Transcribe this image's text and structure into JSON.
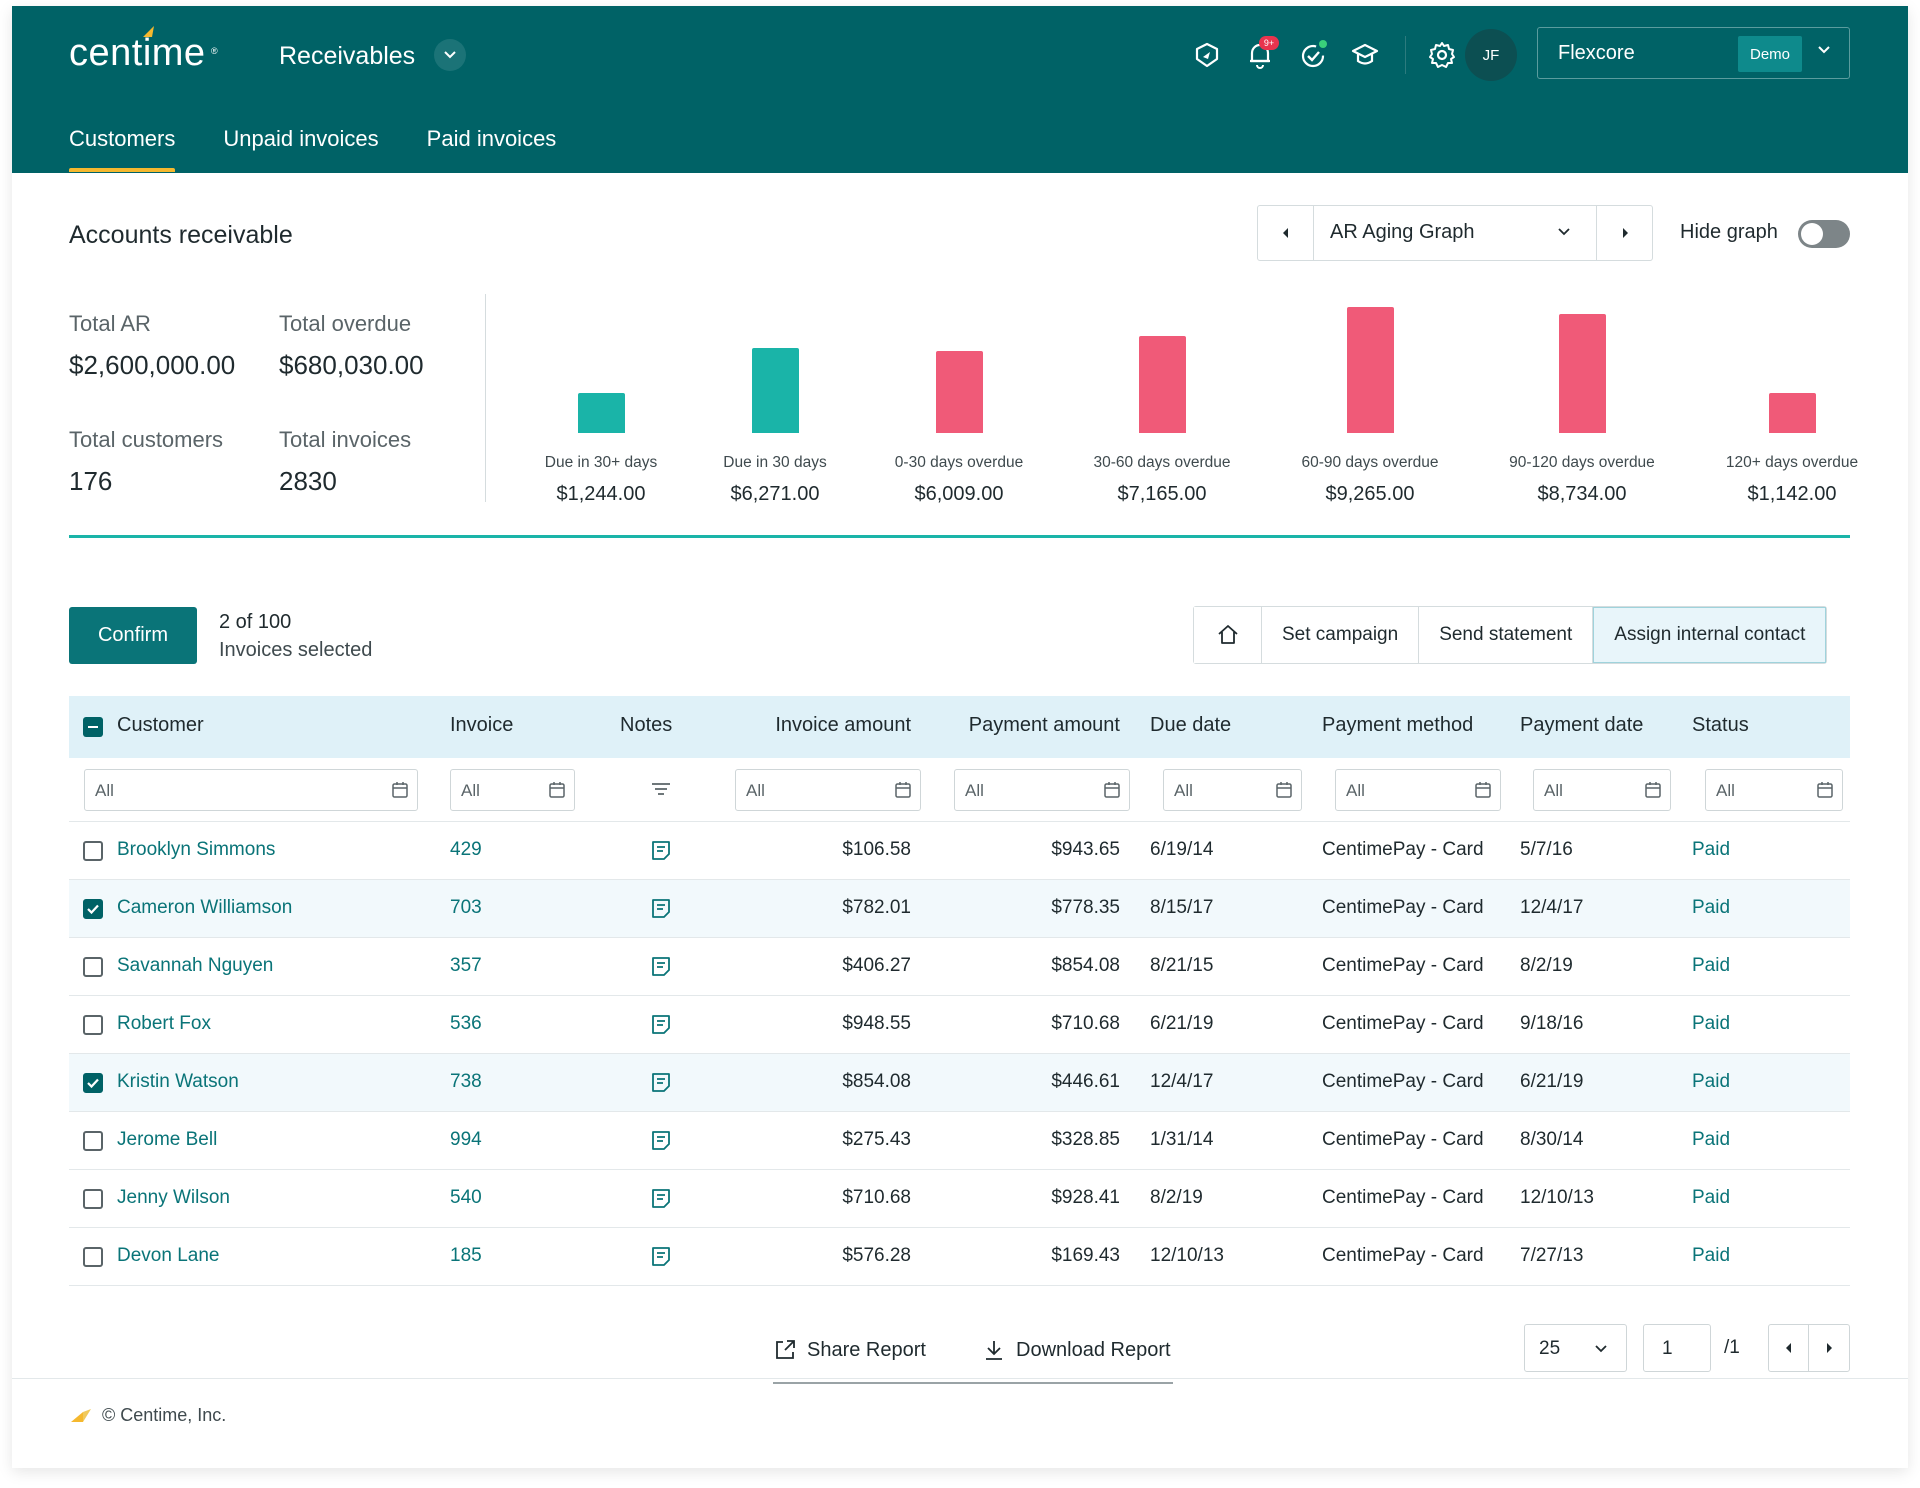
{
  "header": {
    "logo": "centime",
    "logo_reg": "®",
    "module": "Receivables",
    "avatar": "JF",
    "notif_badge": "9+",
    "company": "Flexcore",
    "company_badge": "Demo",
    "tabs": [
      {
        "label": "Customers"
      },
      {
        "label": "Unpaid invoices"
      },
      {
        "label": "Paid invoices"
      }
    ],
    "icons": [
      "shield-icon",
      "bell-icon",
      "check-badge-icon",
      "graduation-cap-icon",
      "gear-icon"
    ]
  },
  "ar": {
    "title": "Accounts receivable",
    "graph_select": "AR Aging Graph",
    "hide_graph": "Hide graph",
    "stats": [
      {
        "label": "Total AR",
        "value": "$2,600,000.00"
      },
      {
        "label": "Total overdue",
        "value": "$680,030.00"
      },
      {
        "label": "Total customers",
        "value": "176"
      },
      {
        "label": "Total invoices",
        "value": "2830"
      }
    ]
  },
  "chart_data": {
    "type": "bar",
    "categories": [
      "Due in 30+ days",
      "Due in 30 days",
      "0-30 days overdue",
      "30-60 days overdue",
      "60-90 days overdue",
      "90-120 days overdue",
      "120+ days overdue"
    ],
    "values": [
      1244.0,
      6271.0,
      6009.0,
      7165.0,
      9265.0,
      8734.0,
      1142.0
    ],
    "value_labels": [
      "$1,244.00",
      "$6,271.00",
      "$6,009.00",
      "$7,165.00",
      "$9,265.00",
      "$8,734.00",
      "$1,142.00"
    ],
    "colors": [
      "#1ab4a8",
      "#1ab4a8",
      "#f05a78",
      "#f05a78",
      "#f05a78",
      "#f05a78",
      "#f05a78"
    ],
    "title": "",
    "xlabel": "",
    "ylabel": ""
  },
  "actions": {
    "confirm": "Confirm",
    "selected_count": "2 of 100",
    "selected_text": "Invoices selected",
    "buttons": [
      "Set campaign",
      "Send statement",
      "Assign internal contact"
    ]
  },
  "table": {
    "columns": [
      "Customer",
      "Invoice",
      "Notes",
      "Invoice amount",
      "Payment amount",
      "Due date",
      "Payment method",
      "Payment date",
      "Status"
    ],
    "filter_placeholder": "All",
    "rows": [
      {
        "checked": false,
        "customer": "Brooklyn Simmons",
        "invoice": "429",
        "invoice_amount": "$106.58",
        "payment_amount": "$943.65",
        "due_date": "6/19/14",
        "payment_method": "CentimePay - Card",
        "payment_date": "5/7/16",
        "status": "Paid"
      },
      {
        "checked": true,
        "customer": "Cameron Williamson",
        "invoice": "703",
        "invoice_amount": "$782.01",
        "payment_amount": "$778.35",
        "due_date": "8/15/17",
        "payment_method": "CentimePay - Card",
        "payment_date": "12/4/17",
        "status": "Paid"
      },
      {
        "checked": false,
        "customer": "Savannah Nguyen",
        "invoice": "357",
        "invoice_amount": "$406.27",
        "payment_amount": "$854.08",
        "due_date": "8/21/15",
        "payment_method": "CentimePay - Card",
        "payment_date": "8/2/19",
        "status": "Paid"
      },
      {
        "checked": false,
        "customer": "Robert Fox",
        "invoice": "536",
        "invoice_amount": "$948.55",
        "payment_amount": "$710.68",
        "due_date": "6/21/19",
        "payment_method": "CentimePay - Card",
        "payment_date": "9/18/16",
        "status": "Paid"
      },
      {
        "checked": true,
        "customer": "Kristin Watson",
        "invoice": "738",
        "invoice_amount": "$854.08",
        "payment_amount": "$446.61",
        "due_date": "12/4/17",
        "payment_method": "CentimePay - Card",
        "payment_date": "6/21/19",
        "status": "Paid"
      },
      {
        "checked": false,
        "customer": "Jerome Bell",
        "invoice": "994",
        "invoice_amount": "$275.43",
        "payment_amount": "$328.85",
        "due_date": "1/31/14",
        "payment_method": "CentimePay - Card",
        "payment_date": "8/30/14",
        "status": "Paid"
      },
      {
        "checked": false,
        "customer": "Jenny Wilson",
        "invoice": "540",
        "invoice_amount": "$710.68",
        "payment_amount": "$928.41",
        "due_date": "8/2/19",
        "payment_method": "CentimePay - Card",
        "payment_date": "12/10/13",
        "status": "Paid"
      },
      {
        "checked": false,
        "customer": "Devon Lane",
        "invoice": "185",
        "invoice_amount": "$576.28",
        "payment_amount": "$169.43",
        "due_date": "12/10/13",
        "payment_method": "CentimePay - Card",
        "payment_date": "7/27/13",
        "status": "Paid"
      }
    ]
  },
  "footer": {
    "share": "Share Report",
    "download": "Download Report",
    "page_size": "25",
    "page": "1",
    "page_total": "/1",
    "copyright": "© Centime, Inc."
  },
  "colors": {
    "brand": "#006266",
    "accent": "#f5b82e",
    "teal": "#1ab4a8",
    "overdue": "#f05a78",
    "link": "#0a7478"
  }
}
